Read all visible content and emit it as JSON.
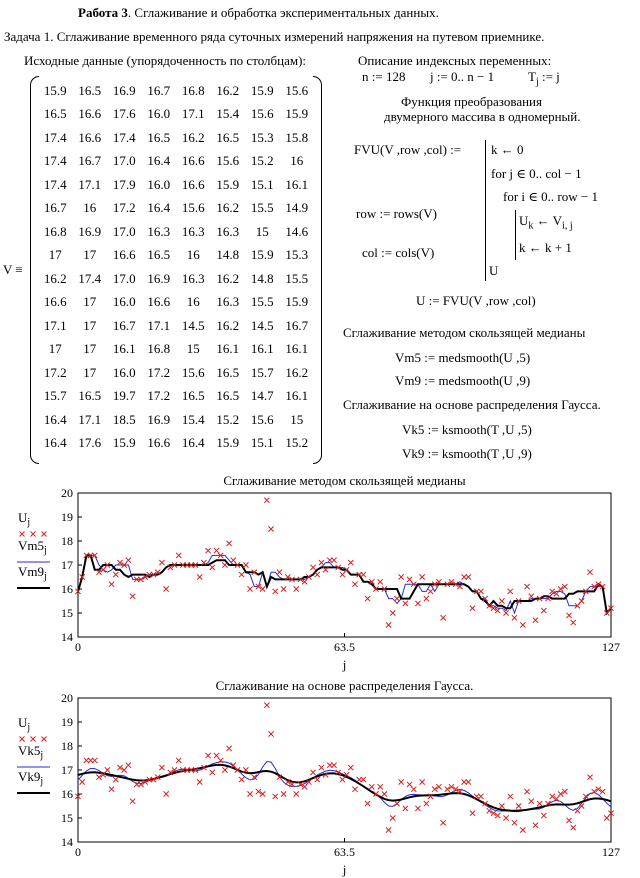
{
  "header": {
    "work_title": "Работа 3",
    "work_subtitle": ". Сглаживание и обработка экспериментальных данных.",
    "task": "Задача 1. Сглаживание временного ряда суточных измерений напряжения на путевом приемнике."
  },
  "matrix": {
    "caption": "Исходные данные (упорядоченность по столбцам):",
    "name": "V ≡",
    "rows": [
      [
        "15.9",
        "16.5",
        "16.9",
        "16.7",
        "16.8",
        "16.2",
        "15.9",
        "15.6"
      ],
      [
        "16.5",
        "16.6",
        "17.6",
        "16.0",
        "17.1",
        "15.4",
        "15.6",
        "15.9"
      ],
      [
        "17.4",
        "16.6",
        "17.4",
        "16.5",
        "16.2",
        "16.5",
        "15.3",
        "15.8"
      ],
      [
        "17.4",
        "16.7",
        "17.0",
        "16.4",
        "16.6",
        "15.6",
        "15.2",
        "16"
      ],
      [
        "17.4",
        "17.1",
        "17.9",
        "16.0",
        "16.6",
        "15.9",
        "15.1",
        "16.1"
      ],
      [
        "16.7",
        "16",
        "17.2",
        "16.4",
        "15.6",
        "16.2",
        "15.5",
        "14.9"
      ],
      [
        "16.8",
        "16.9",
        "17.0",
        "16.3",
        "16.3",
        "16.3",
        "15",
        "14.6"
      ],
      [
        "17",
        "17",
        "16.6",
        "16.5",
        "16",
        "14.8",
        "15.9",
        "15.3"
      ],
      [
        "16.2",
        "17.4",
        "17.0",
        "16.9",
        "16.3",
        "16.2",
        "14.8",
        "15.5"
      ],
      [
        "16.6",
        "17",
        "16.0",
        "16.6",
        "16",
        "16.3",
        "15.5",
        "15.9"
      ],
      [
        "17.1",
        "17",
        "16.7",
        "17.1",
        "14.5",
        "16.2",
        "14.5",
        "16.7"
      ],
      [
        "17",
        "17",
        "16.1",
        "16.8",
        "15",
        "16.1",
        "16.1",
        "16.1"
      ],
      [
        "17.2",
        "17",
        "16.0",
        "17.2",
        "15.6",
        "16.5",
        "15.7",
        "16.2"
      ],
      [
        "15.7",
        "16.5",
        "19.7",
        "17.2",
        "16.5",
        "16.5",
        "14.7",
        "16.1"
      ],
      [
        "16.4",
        "17.1",
        "18.5",
        "16.9",
        "15.4",
        "15.2",
        "15.6",
        "15"
      ],
      [
        "16.4",
        "17.6",
        "15.9",
        "16.6",
        "16.4",
        "15.9",
        "15.1",
        "15.2"
      ]
    ]
  },
  "right": {
    "index_title": "Описание индексных переменных:",
    "n_def": "n := 128",
    "j_def": "j := 0.. n − 1",
    "tj_def": "T",
    "tj_sub": "j",
    "tj_rhs": " := j",
    "func_title_1": "Функция преобразования",
    "func_title_2": "двумерного массива в одномерный.",
    "fvu_head": "FVU(V ,row ,col) :=",
    "prog_1": "k ← 0",
    "prog_2": "for  j ∈ 0.. col − 1",
    "prog_3": "for  i ∈ 0.. row − 1",
    "prog_4": "U",
    "prog_4_sub": "k",
    "prog_4b": " ← V",
    "prog_4b_sub": "i, j",
    "prog_5": "k ← k + 1",
    "prog_6": "U",
    "row_def": "row := rows(V)",
    "col_def": "col := cols(V)",
    "u_def": "U := FVU(V ,row ,col)",
    "median_title": "Сглаживание методом скользящей медианы",
    "vm5_def": "Vm5 := medsmooth(U ,5)",
    "vm9_def": "Vm9 := medsmooth(U ,9)",
    "gauss_title": "Сглаживание на основе распределения Гаусса.",
    "vk5_def": "Vk5 := ksmooth(T ,U ,5)",
    "vk9_def": "Vk9 := ksmooth(T ,U ,9)"
  },
  "chart_data": [
    {
      "type": "scatter",
      "title": "Сглаживание методом скользящей медианы",
      "xlabel": "j",
      "xlim": [
        0,
        127
      ],
      "ylim": [
        14,
        20
      ],
      "x_ticks": [
        "0",
        "63.5",
        "127"
      ],
      "y_ticks": [
        "14",
        "15",
        "16",
        "17",
        "18",
        "19",
        "20"
      ],
      "legend": [
        {
          "name": "U",
          "sub": "j",
          "color": "#d62020",
          "style": "x"
        },
        {
          "name": "Vm5",
          "sub": "j",
          "color": "#2a2ad8",
          "style": "line"
        },
        {
          "name": "Vm9",
          "sub": "j",
          "color": "#000000",
          "style": "line-bold"
        }
      ],
      "smooth": [
        "median",
        "median"
      ]
    },
    {
      "type": "scatter",
      "title": "Сглаживание на основе распределения Гаусса.",
      "xlabel": "j",
      "xlim": [
        0,
        127
      ],
      "ylim": [
        14,
        20
      ],
      "x_ticks": [
        "0",
        "63.5",
        "127"
      ],
      "y_ticks": [
        "14",
        "15",
        "16",
        "17",
        "18",
        "19",
        "20"
      ],
      "legend": [
        {
          "name": "U",
          "sub": "j",
          "color": "#d62020",
          "style": "x"
        },
        {
          "name": "Vk5",
          "sub": "j",
          "color": "#2a2ad8",
          "style": "line"
        },
        {
          "name": "Vk9",
          "sub": "j",
          "color": "#000000",
          "style": "line-bold"
        }
      ],
      "smooth": [
        "gauss",
        "gauss"
      ]
    }
  ]
}
